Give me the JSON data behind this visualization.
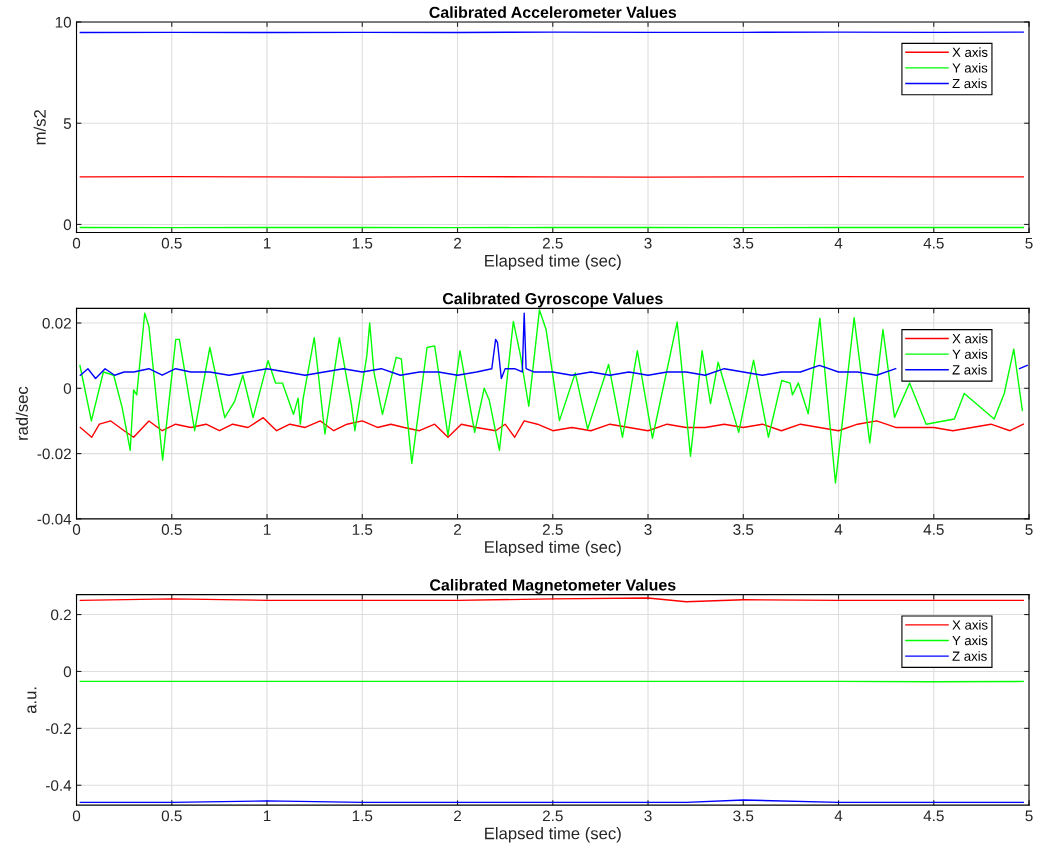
{
  "chart_data": [
    {
      "type": "line",
      "title": "Calibrated Accelerometer Values",
      "xlabel": "Elapsed time (sec)",
      "ylabel": "m/s2",
      "xlim": [
        0,
        5
      ],
      "xticks": [
        0,
        0.5,
        1,
        1.5,
        2,
        2.5,
        3,
        3.5,
        4,
        4.5,
        5
      ],
      "ylim": [
        -0.4,
        10
      ],
      "yticks": [
        0,
        5,
        10
      ],
      "grid": true,
      "legend": "top right",
      "marker": "none",
      "line_style": "solid",
      "x": [
        0.02,
        0.5,
        1.0,
        1.5,
        2.0,
        2.5,
        3.0,
        3.5,
        4.0,
        4.5,
        4.97
      ],
      "series": [
        {
          "name": "X axis",
          "color": "#ff0000",
          "values": [
            2.35,
            2.36,
            2.35,
            2.34,
            2.36,
            2.35,
            2.34,
            2.35,
            2.36,
            2.35,
            2.35
          ]
        },
        {
          "name": "Y axis",
          "color": "#00ff00",
          "values": [
            -0.15,
            -0.16,
            -0.15,
            -0.15,
            -0.16,
            -0.15,
            -0.15,
            -0.16,
            -0.15,
            -0.15,
            -0.15
          ]
        },
        {
          "name": "Z axis",
          "color": "#0000ff",
          "values": [
            9.48,
            9.49,
            9.48,
            9.49,
            9.48,
            9.5,
            9.49,
            9.49,
            9.5,
            9.49,
            9.5
          ]
        }
      ]
    },
    {
      "type": "line",
      "title": "Calibrated Gyroscope Values",
      "xlabel": "Elapsed time (sec)",
      "ylabel": "rad/sec",
      "xlim": [
        0,
        5
      ],
      "xticks": [
        0,
        0.5,
        1,
        1.5,
        2,
        2.5,
        3,
        3.5,
        4,
        4.5,
        5
      ],
      "ylim": [
        -0.04,
        0.0245
      ],
      "yticks": [
        -0.04,
        -0.02,
        0,
        0.02
      ],
      "grid": true,
      "legend": "top right",
      "marker": "none",
      "line_style": "solid",
      "series": [
        {
          "name": "X axis",
          "color": "#ff0000",
          "x": [
            0.02,
            0.08,
            0.12,
            0.18,
            0.25,
            0.3,
            0.38,
            0.45,
            0.52,
            0.6,
            0.68,
            0.75,
            0.82,
            0.9,
            0.98,
            1.05,
            1.12,
            1.2,
            1.28,
            1.35,
            1.42,
            1.5,
            1.58,
            1.65,
            1.72,
            1.8,
            1.88,
            1.95,
            2.02,
            2.1,
            2.2,
            2.25,
            2.3,
            2.35,
            2.42,
            2.5,
            2.6,
            2.7,
            2.8,
            2.9,
            3.0,
            3.1,
            3.2,
            3.3,
            3.4,
            3.5,
            3.6,
            3.7,
            3.8,
            3.9,
            4.0,
            4.1,
            4.2,
            4.3,
            4.4,
            4.5,
            4.6,
            4.7,
            4.8,
            4.9,
            4.97
          ],
          "values": [
            -0.012,
            -0.015,
            -0.011,
            -0.01,
            -0.013,
            -0.015,
            -0.01,
            -0.013,
            -0.011,
            -0.012,
            -0.011,
            -0.013,
            -0.011,
            -0.012,
            -0.009,
            -0.013,
            -0.011,
            -0.012,
            -0.01,
            -0.013,
            -0.011,
            -0.01,
            -0.012,
            -0.011,
            -0.012,
            -0.013,
            -0.011,
            -0.015,
            -0.011,
            -0.012,
            -0.013,
            -0.011,
            -0.015,
            -0.01,
            -0.011,
            -0.013,
            -0.012,
            -0.013,
            -0.011,
            -0.012,
            -0.013,
            -0.011,
            -0.012,
            -0.012,
            -0.011,
            -0.012,
            -0.011,
            -0.013,
            -0.011,
            -0.012,
            -0.013,
            -0.011,
            -0.01,
            -0.012,
            -0.012,
            -0.012,
            -0.013,
            -0.012,
            -0.011,
            -0.013,
            -0.011
          ]
        },
        {
          "name": "Y axis",
          "color": "#00ff00",
          "x": [
            0.018,
            0.078,
            0.141,
            0.195,
            0.24,
            0.282,
            0.3,
            0.316,
            0.358,
            0.38,
            0.452,
            0.521,
            0.54,
            0.62,
            0.7,
            0.778,
            0.83,
            0.873,
            0.927,
            1.005,
            1.045,
            1.081,
            1.139,
            1.163,
            1.175,
            1.19,
            1.248,
            1.304,
            1.38,
            1.443,
            1.461,
            1.524,
            1.539,
            1.561,
            1.606,
            1.678,
            1.705,
            1.76,
            1.84,
            1.88,
            1.95,
            2.013,
            2.09,
            2.14,
            2.166,
            2.22,
            2.293,
            2.329,
            2.374,
            2.43,
            2.465,
            2.535,
            2.618,
            2.683,
            2.793,
            2.866,
            2.944,
            3.023,
            3.153,
            3.223,
            3.284,
            3.328,
            3.368,
            3.476,
            3.554,
            3.632,
            3.702,
            3.746,
            3.758,
            3.789,
            3.841,
            3.902,
            3.984,
            4.082,
            4.164,
            4.233,
            4.294,
            4.373,
            4.46,
            4.608,
            4.66,
            4.817,
            4.87,
            4.92,
            4.965
          ],
          "values": [
            0.007,
            -0.01,
            0.005,
            0.004,
            -0.006,
            -0.019,
            -0.0005,
            -0.002,
            0.023,
            0.019,
            -0.022,
            0.015,
            0.015,
            -0.013,
            0.0125,
            -0.009,
            -0.004,
            0.004,
            -0.009,
            0.0085,
            0.0016,
            0.0016,
            -0.008,
            -0.003,
            -0.011,
            -0.003,
            0.0155,
            -0.014,
            0.0155,
            -0.005,
            -0.013,
            0.01,
            0.02,
            0.005,
            -0.008,
            0.0095,
            0.009,
            -0.023,
            0.0125,
            0.013,
            -0.0145,
            0.0115,
            -0.0135,
            0.0,
            -0.0035,
            -0.019,
            0.0205,
            0.0105,
            -0.0055,
            0.024,
            0.018,
            -0.0099,
            0.0047,
            -0.0125,
            0.0073,
            -0.015,
            0.0115,
            -0.0153,
            0.0203,
            -0.0208,
            0.0115,
            -0.0047,
            0.008,
            -0.0135,
            0.0086,
            -0.015,
            0.0024,
            0.0016,
            -0.002,
            0.0016,
            -0.0078,
            0.0214,
            -0.029,
            0.0216,
            -0.0167,
            0.018,
            -0.0089,
            0.0016,
            -0.011,
            -0.0094,
            -0.0016,
            -0.0094,
            -0.0016,
            0.012,
            -0.0068
          ]
        },
        {
          "name": "Z axis",
          "color": "#0000ff",
          "x": [
            0.02,
            0.06,
            0.1,
            0.15,
            0.2,
            0.25,
            0.3,
            0.38,
            0.45,
            0.52,
            0.6,
            0.7,
            0.8,
            0.9,
            1.0,
            1.1,
            1.2,
            1.3,
            1.4,
            1.5,
            1.6,
            1.7,
            1.8,
            1.9,
            2.0,
            2.1,
            2.18,
            2.2,
            2.21,
            2.23,
            2.25,
            2.3,
            2.34,
            2.35,
            2.36,
            2.4,
            2.5,
            2.6,
            2.7,
            2.8,
            2.9,
            3.0,
            3.1,
            3.2,
            3.3,
            3.4,
            3.5,
            3.6,
            3.7,
            3.8,
            3.9,
            4.0,
            4.1,
            4.2,
            4.3,
            4.4,
            4.5,
            4.6,
            4.7,
            4.8,
            4.95,
            4.99
          ],
          "values": [
            0.004,
            0.006,
            0.003,
            0.006,
            0.004,
            0.005,
            0.005,
            0.006,
            0.004,
            0.006,
            0.005,
            0.005,
            0.004,
            0.005,
            0.006,
            0.005,
            0.004,
            0.005,
            0.006,
            0.005,
            0.006,
            0.004,
            0.005,
            0.005,
            0.004,
            0.005,
            0.006,
            0.015,
            0.014,
            0.003,
            0.006,
            0.006,
            0.005,
            0.023,
            0.006,
            0.005,
            0.005,
            0.004,
            0.005,
            0.004,
            0.005,
            0.004,
            0.005,
            0.005,
            0.004,
            0.006,
            0.005,
            0.004,
            0.005,
            0.005,
            0.007,
            0.005,
            0.005,
            0.004,
            0.006,
            null,
            null,
            null,
            null,
            null,
            0.006,
            0.007
          ]
        }
      ]
    },
    {
      "type": "line",
      "title": "Calibrated Magnetometer Values",
      "xlabel": "Elapsed time (sec)",
      "ylabel": "a.u.",
      "xlim": [
        0,
        5
      ],
      "xticks": [
        0,
        0.5,
        1,
        1.5,
        2,
        2.5,
        3,
        3.5,
        4,
        4.5,
        5
      ],
      "ylim": [
        -0.47,
        0.27
      ],
      "yticks": [
        -0.4,
        -0.2,
        0,
        0.2
      ],
      "grid": true,
      "legend": "top right",
      "marker": "none",
      "line_style": "solid",
      "x": [
        0.02,
        0.5,
        1.0,
        1.5,
        2.0,
        2.5,
        3.0,
        3.2,
        3.5,
        4.0,
        4.5,
        4.97
      ],
      "series": [
        {
          "name": "X axis",
          "color": "#ff0000",
          "values": [
            0.25,
            0.255,
            0.25,
            0.25,
            0.25,
            0.255,
            0.258,
            0.245,
            0.252,
            0.25,
            0.25,
            0.25
          ]
        },
        {
          "name": "Y axis",
          "color": "#00ff00",
          "values": [
            -0.035,
            -0.035,
            -0.035,
            -0.035,
            -0.035,
            -0.035,
            -0.035,
            -0.035,
            -0.035,
            -0.035,
            -0.036,
            -0.035
          ]
        },
        {
          "name": "Z axis",
          "color": "#0000ff",
          "values": [
            -0.46,
            -0.46,
            -0.455,
            -0.46,
            -0.46,
            -0.46,
            -0.46,
            -0.46,
            -0.452,
            -0.46,
            -0.46,
            -0.46
          ]
        }
      ]
    }
  ]
}
